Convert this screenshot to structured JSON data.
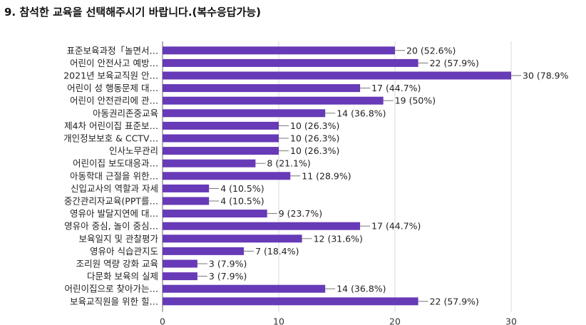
{
  "title": "9. 참석한 교육을 선택해주시기 바랍니다.(복수응답가능)",
  "chart_data": {
    "type": "bar",
    "orientation": "horizontal",
    "categories": [
      "표준보육과정「놀면서…",
      "어린이 안전사고 예방…",
      "2021년 보육교직원 안…",
      "어린이 성 행동문제 대…",
      "어린이 안전관리에 관…",
      "아동권리존중교육",
      "제4차 어린이집 표준보…",
      "개인정보보호 & CCTV…",
      "인사노무관리",
      "어린이집 보도대응과…",
      "아동학대 근절을 위한…",
      "신입교사의 역할과 자세",
      "중간관리자교육(PPT를…",
      "영유아 발달지연에 대…",
      "영유아 중심, 놀이 중심…",
      "보육일지 및 관찰평가",
      "영유아 식습관지도",
      "조리원 역량 강화 교육",
      "다문화 보육의 실제",
      "어린이집으로 찾아가는…",
      "보육교직원을 위한 힐…"
    ],
    "values": [
      20,
      22,
      30,
      17,
      19,
      14,
      10,
      10,
      10,
      8,
      11,
      4,
      4,
      9,
      17,
      12,
      7,
      3,
      3,
      14,
      22
    ],
    "data_labels": [
      "20 (52.6%)",
      "22 (57.9%)",
      "30 (78.9%)",
      "17 (44.7%)",
      "19 (50%)",
      "14 (36.8%)",
      "10 (26.3%)",
      "10 (26.3%)",
      "10 (26.3%)",
      "8 (21.1%)",
      "11 (28.9%)",
      "4 (10.5%)",
      "4 (10.5%)",
      "9 (23.7%)",
      "17 (44.7%)",
      "12 (31.6%)",
      "7 (18.4%)",
      "3 (7.9%)",
      "3 (7.9%)",
      "14 (36.8%)",
      "22 (57.9%)"
    ],
    "x_ticks": [
      0,
      10,
      20,
      30
    ],
    "xlim": [
      0,
      30
    ],
    "bar_color": "#673ab7",
    "grid": true
  }
}
